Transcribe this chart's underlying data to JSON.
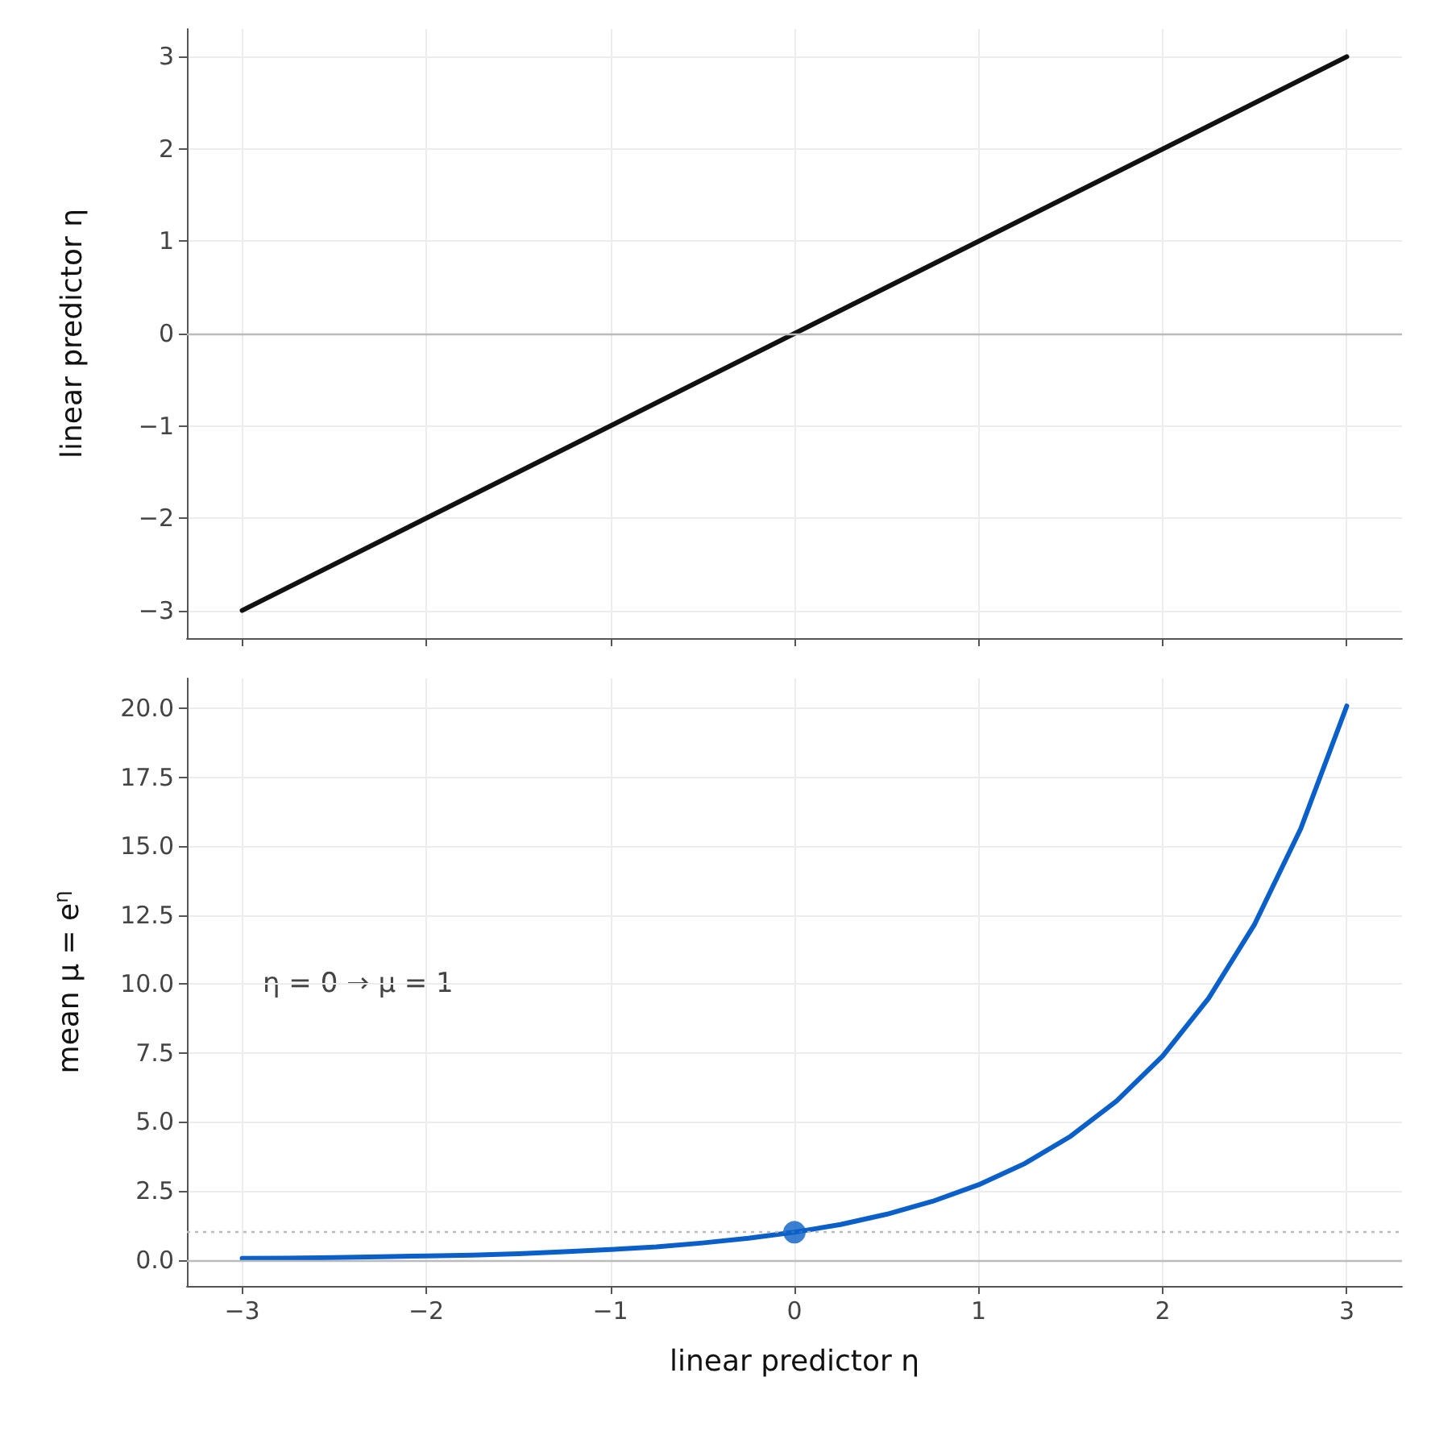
{
  "chart_data": [
    {
      "type": "line",
      "ylabel": "linear predictor η",
      "series": [
        {
          "color": "#111111",
          "x": [
            -3,
            3
          ],
          "values": [
            -3,
            3
          ]
        }
      ],
      "xlim": [
        -3.3,
        3.3
      ],
      "xticks": [
        -3,
        -2,
        -1,
        0,
        1,
        2,
        3
      ],
      "ylim": [
        -3.3,
        3.3
      ],
      "yticks": [
        -3,
        -2,
        -1,
        0,
        1,
        2,
        3
      ],
      "ref_lines": [
        {
          "axis": "y",
          "value": 0,
          "color": "#bbbbbb",
          "line_style": "solid"
        }
      ],
      "grid": true,
      "tick_labels": "y",
      "marker": "none",
      "line_style": "solid"
    },
    {
      "type": "line",
      "xlabel": "linear predictor η",
      "ylabel": "mean μ = e$^{η}$",
      "annotations": [
        "η = 0 → μ = 1"
      ],
      "series": [
        {
          "color": "#0a5fc8",
          "x": [
            -3,
            -2.75,
            -2.5,
            -2.25,
            -2,
            -1.75,
            -1.5,
            -1.25,
            -1,
            -0.75,
            -0.5,
            -0.25,
            0,
            0.25,
            0.5,
            0.75,
            1,
            1.25,
            1.5,
            1.75,
            2,
            2.25,
            2.5,
            2.75,
            3
          ],
          "values": [
            0.05,
            0.06,
            0.08,
            0.11,
            0.14,
            0.17,
            0.22,
            0.29,
            0.37,
            0.47,
            0.61,
            0.78,
            1,
            1.28,
            1.65,
            2.12,
            2.72,
            3.49,
            4.48,
            5.76,
            7.39,
            9.49,
            12.18,
            15.64,
            20.09
          ]
        },
        {
          "type": "scatter",
          "color": "#0a5fc8",
          "marker": "circle",
          "x": [
            0
          ],
          "values": [
            1
          ]
        }
      ],
      "xlim": [
        -3.3,
        3.3
      ],
      "xticks": [
        -3,
        -2,
        -1,
        0,
        1,
        2,
        3
      ],
      "ylim": [
        -0.95,
        21.09
      ],
      "yticks": [
        {
          "value": 0,
          "label": "0.0"
        },
        {
          "value": 2.5,
          "label": "2.5"
        },
        {
          "value": 5,
          "label": "5.0"
        },
        {
          "value": 7.5,
          "label": "7.5"
        },
        {
          "value": 10,
          "label": "10.0"
        },
        {
          "value": 12.5,
          "label": "12.5"
        },
        {
          "value": 15,
          "label": "15.0"
        },
        {
          "value": 17.5,
          "label": "17.5"
        },
        {
          "value": 20,
          "label": "20.0"
        }
      ],
      "ref_lines": [
        {
          "axis": "y",
          "value": 0,
          "color": "#bbbbbb",
          "line_style": "solid"
        },
        {
          "axis": "y",
          "value": 1,
          "color": "#bbbbbb",
          "line_style": "dotted"
        }
      ],
      "grid": true,
      "marker": "none",
      "line_style": "solid"
    }
  ]
}
